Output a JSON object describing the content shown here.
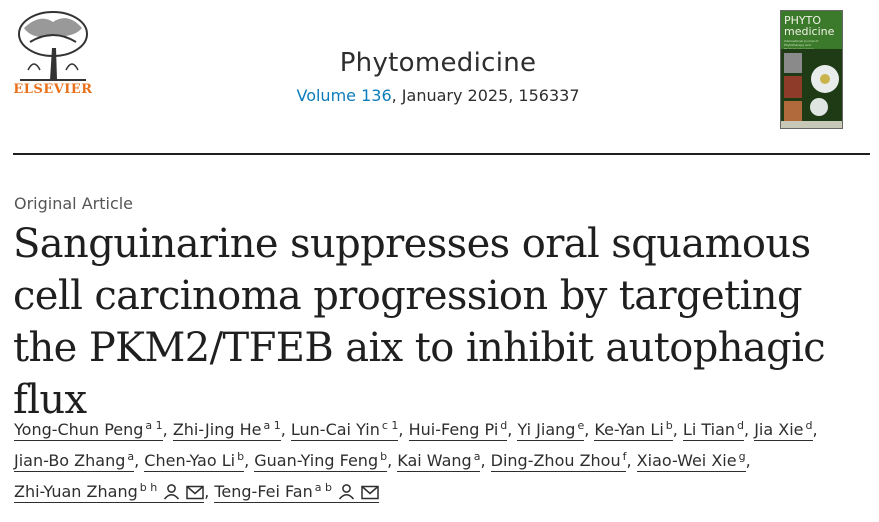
{
  "publisher": {
    "name": "ELSEVIER"
  },
  "journal": {
    "title": "Phytomedicine",
    "volume_link": "Volume 136",
    "issue_rest": ", January 2025, 156337"
  },
  "cover": {
    "title_line1": "PHYTO",
    "title_line2": "medicine",
    "subtitle": "International Journal of Phytotherapy and Phytopharmacology"
  },
  "article": {
    "type": "Original Article",
    "title": "Sanguinarine suppresses oral squamous cell carcinoma progression by targeting the PKM2/TFEB aix to inhibit autophagic flux"
  },
  "authors": [
    {
      "name": "Yong-Chun Peng",
      "sup": "a 1"
    },
    {
      "name": "Zhi-Jing He",
      "sup": "a 1"
    },
    {
      "name": "Lun-Cai Yin",
      "sup": "c 1"
    },
    {
      "name": "Hui-Feng Pi",
      "sup": "d"
    },
    {
      "name": "Yi Jiang",
      "sup": "e"
    },
    {
      "name": "Ke-Yan Li",
      "sup": "b"
    },
    {
      "name": "Li Tian",
      "sup": "d"
    },
    {
      "name": "Jia Xie",
      "sup": "d"
    },
    {
      "name": "Jian-Bo Zhang",
      "sup": "a"
    },
    {
      "name": "Chen-Yao Li",
      "sup": "b"
    },
    {
      "name": "Guan-Ying Feng",
      "sup": "b"
    },
    {
      "name": "Kai Wang",
      "sup": "a"
    },
    {
      "name": "Ding-Zhou Zhou",
      "sup": "f"
    },
    {
      "name": "Xiao-Wei Xie",
      "sup": "g"
    },
    {
      "name": "Zhi-Yuan Zhang",
      "sup": "b h",
      "icons": [
        "person-icon",
        "mail-icon"
      ]
    },
    {
      "name": "Teng-Fei Fan",
      "sup": "a b",
      "icons": [
        "person-icon",
        "mail-icon"
      ]
    }
  ],
  "colors": {
    "link": "#0c7dbb",
    "publisher": "#e9711c",
    "text": "#1f1f1f"
  }
}
